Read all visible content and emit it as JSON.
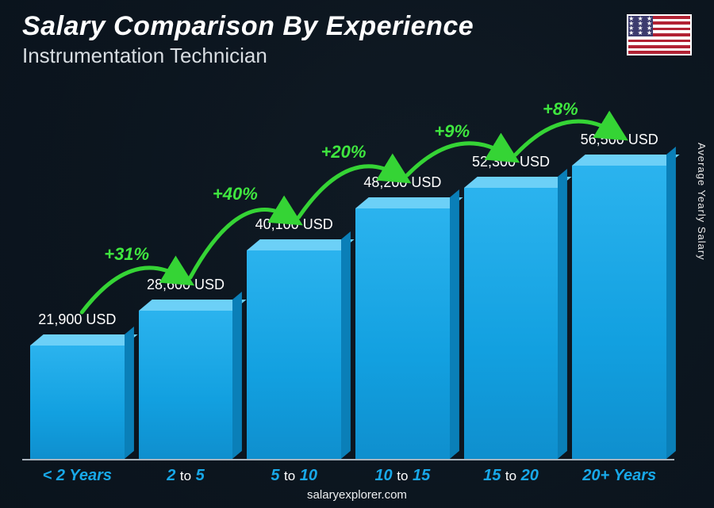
{
  "header": {
    "title": "Salary Comparison By Experience",
    "subtitle": "Instrumentation Technician",
    "flag_country": "United States"
  },
  "y_axis_label": "Average Yearly Salary",
  "footer": "salaryexplorer.com",
  "chart": {
    "type": "bar",
    "bar_fill_top": "#6cd0f7",
    "bar_fill_front": "#12a0e0",
    "bar_fill_side": "#0a7fb8",
    "baseline_color": "#a9b2bb",
    "value_color": "#ffffff",
    "category_color": "#18a8e8",
    "pct_color": "#3fe63f",
    "arc_stroke": "#35d435",
    "value_fontsize": 18,
    "category_fontsize": 20,
    "pct_fontsize": 22,
    "max_value": 56500,
    "categories": [
      {
        "label_main": "< 2",
        "label_suffix": "Years",
        "value": 21900,
        "value_label": "21,900 USD",
        "pct_increase": null
      },
      {
        "label_main": "2",
        "label_mid": "to",
        "label_end": "5",
        "value": 28600,
        "value_label": "28,600 USD",
        "pct_increase": "+31%"
      },
      {
        "label_main": "5",
        "label_mid": "to",
        "label_end": "10",
        "value": 40100,
        "value_label": "40,100 USD",
        "pct_increase": "+40%"
      },
      {
        "label_main": "10",
        "label_mid": "to",
        "label_end": "15",
        "value": 48200,
        "value_label": "48,200 USD",
        "pct_increase": "+20%"
      },
      {
        "label_main": "15",
        "label_mid": "to",
        "label_end": "20",
        "value": 52300,
        "value_label": "52,300 USD",
        "pct_increase": "+9%"
      },
      {
        "label_main": "20+",
        "label_suffix": "Years",
        "value": 56500,
        "value_label": "56,500 USD",
        "pct_increase": "+8%"
      }
    ]
  }
}
